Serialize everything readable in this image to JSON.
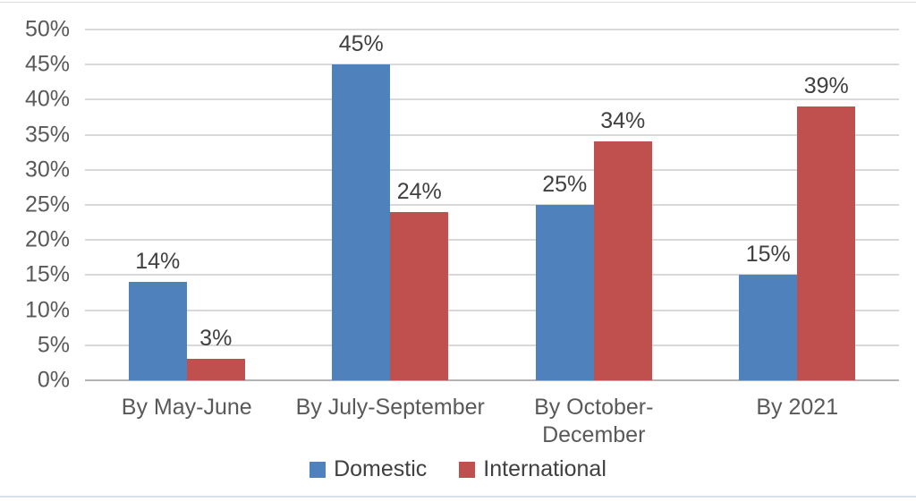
{
  "chart_data": {
    "type": "bar",
    "categories": [
      "By May-June",
      "By July-September",
      "By October-December",
      "By 2021"
    ],
    "series": [
      {
        "name": "Domestic",
        "color": "#4f81bd",
        "values": [
          14,
          45,
          25,
          15
        ]
      },
      {
        "name": "International",
        "color": "#c0504d",
        "values": [
          3,
          24,
          34,
          39
        ]
      }
    ],
    "title": "",
    "xlabel": "",
    "ylabel": "",
    "ylim": [
      0,
      50
    ],
    "ytick_step": 5,
    "ytick_suffix": "%",
    "data_label_suffix": "%",
    "grid": true,
    "legend_position": "bottom"
  },
  "style": {
    "background": "#ffffff",
    "gridline_color": "#d9d9d9",
    "axis_line_color": "#b3b3b3",
    "tick_label_color": "#595959",
    "x_label_color": "#595959",
    "data_label_color": "#404040",
    "legend_label_color": "#404040"
  }
}
